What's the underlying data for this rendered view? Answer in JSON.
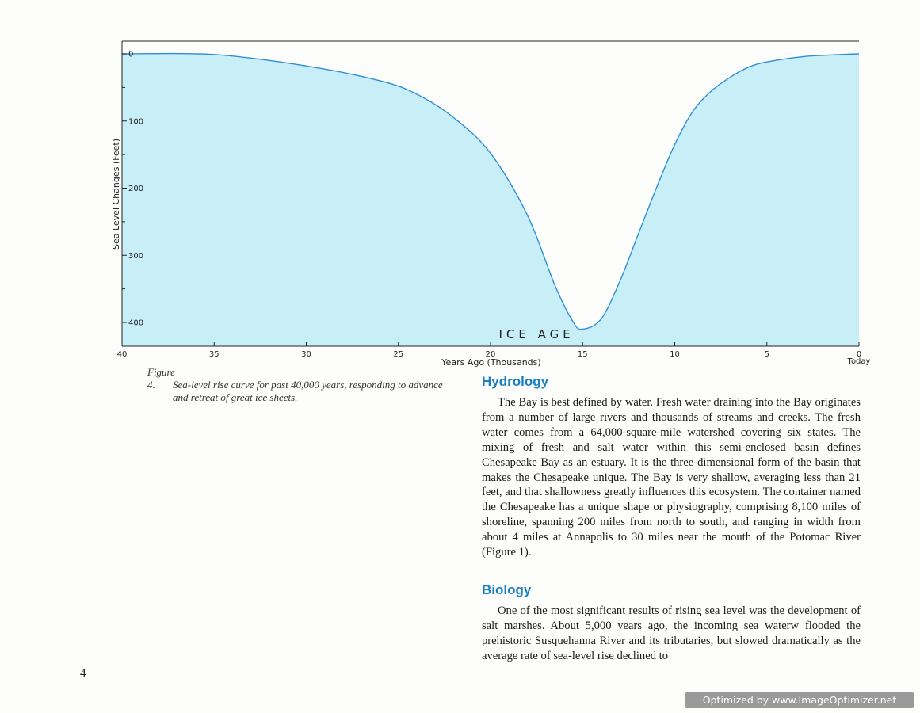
{
  "chart_data": {
    "type": "area",
    "ylabel": "Sea Level Change​s (Feet)",
    "xlabel": "Years Ago (Thousands)",
    "x_ticks": [
      40,
      35,
      30,
      25,
      20,
      15,
      10,
      5,
      0
    ],
    "x_tick_labels": [
      "40",
      "35",
      "30",
      "25",
      "20",
      "15",
      "10",
      "5",
      "0"
    ],
    "x_zero_sublabel": "Today",
    "y_ticks": [
      0,
      100,
      200,
      300,
      400
    ],
    "y_tick_labels": [
      "0",
      "100",
      "200",
      "300",
      "400"
    ],
    "xlim": [
      40,
      0
    ],
    "ylim": [
      0,
      445
    ],
    "annotation": "ICE AGE",
    "x": [
      40,
      35,
      30,
      26,
      24,
      22,
      20,
      18,
      16.5,
      15.5,
      15,
      14,
      13,
      12,
      11,
      10,
      9,
      8,
      7,
      6,
      5,
      3,
      1,
      0
    ],
    "values": [
      0,
      1,
      18,
      40,
      60,
      95,
      148,
      240,
      345,
      400,
      410,
      395,
      340,
      270,
      200,
      135,
      85,
      55,
      35,
      20,
      12,
      4,
      1,
      0
    ],
    "fill_color": "#c8eef8",
    "line_color": "#2e8fd6"
  },
  "figure": {
    "caption_number": "Figure 4.",
    "caption_line1": "Sea-level rise curve for past 40,000 years, responding to advance",
    "caption_line2": "and retreat of great ice sheets."
  },
  "sections": [
    {
      "heading": "Hydrology",
      "paragraph": "The Bay is best defined by water. Fresh water draining into the Bay originates from a number of large rivers and thousands of streams and creeks. The fresh water comes from a 64,000-square-mile watershed covering six states. The mixing of fresh and salt water within this semi-enclosed basin defines Chesapeake Bay as an estuary. It is the three-dimensional form of the basin that makes the Chesapeake unique. The Bay is very shallow, averaging less than 21 feet, and that shallowness greatly influences this ecosystem. The container named the Chesapeake has a unique shape or physiography, comprising 8,100 miles of shoreline, spanning 200 miles from north to south, and ranging in width from about 4 miles at Annapolis to 30 miles near the mouth of the Potomac River (Figure 1)."
    },
    {
      "heading": "Biology",
      "paragraph": "One of the most significant results of rising sea level was the development of salt marshes. About 5,000 years ago, the incoming sea waterw flooded the prehistoric Susquehanna River and its tributaries, but slowed dramatically as the average rate of sea-level rise declined to"
    }
  ],
  "page_number": "4",
  "watermark": "Optimized by www.ImageOptimizer.net"
}
